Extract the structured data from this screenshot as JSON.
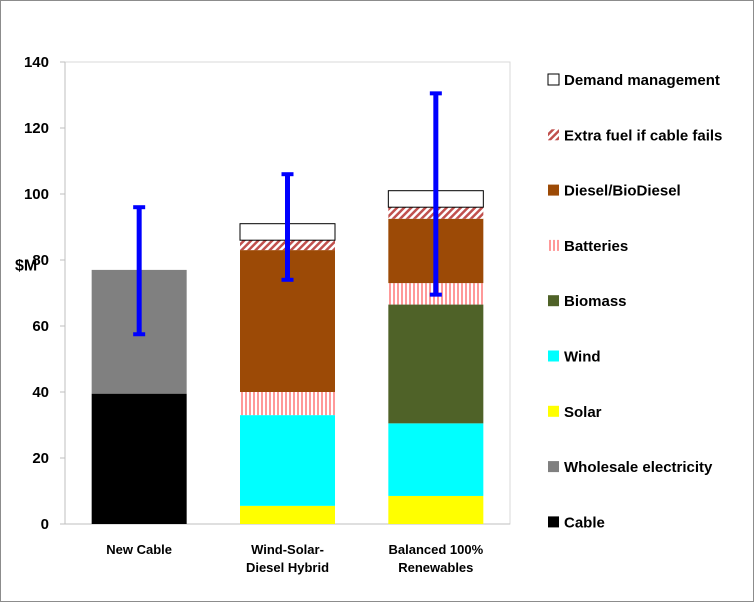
{
  "chart_data": {
    "type": "bar",
    "stacked": true,
    "ylabel": "$M",
    "ylim": [
      0,
      140
    ],
    "yticks": [
      0,
      20,
      40,
      60,
      80,
      100,
      120,
      140
    ],
    "grid": false,
    "legend_position": "right",
    "categories": [
      [
        "New Cable"
      ],
      [
        "Wind-Solar-",
        "Diesel Hybrid"
      ],
      [
        "Balanced 100%",
        "Renewables"
      ]
    ],
    "series": [
      {
        "name": "Cable",
        "color": "#000000",
        "values": [
          39.5,
          0,
          0
        ]
      },
      {
        "name": "Wholesale electricity",
        "color": "#808080",
        "values": [
          37.5,
          0,
          0
        ]
      },
      {
        "name": "Solar",
        "color": "#ffff00",
        "values": [
          0,
          5.5,
          8.5
        ]
      },
      {
        "name": "Wind",
        "color": "#00ffff",
        "values": [
          0,
          27.5,
          22
        ]
      },
      {
        "name": "Biomass",
        "color": "#4f6228",
        "values": [
          0,
          0,
          36
        ]
      },
      {
        "name": "Batteries",
        "color": "#ff9999",
        "pattern": "vertical-stripes",
        "values": [
          0,
          7,
          6.5
        ]
      },
      {
        "name": "Diesel/BioDiesel",
        "color": "#9c4a06",
        "values": [
          0,
          43,
          19.5
        ]
      },
      {
        "name": "Extra fuel if cable fails",
        "color": "#c0504d",
        "pattern": "diagonal-hatch",
        "values": [
          0,
          3,
          3.5
        ]
      },
      {
        "name": "Demand management",
        "color": "#ffffff",
        "values": [
          0,
          5,
          5
        ]
      }
    ],
    "error_bars": {
      "color": "#0000ff",
      "ranges": [
        [
          57.5,
          96
        ],
        [
          74,
          106
        ],
        [
          69.5,
          130.5
        ]
      ]
    }
  }
}
